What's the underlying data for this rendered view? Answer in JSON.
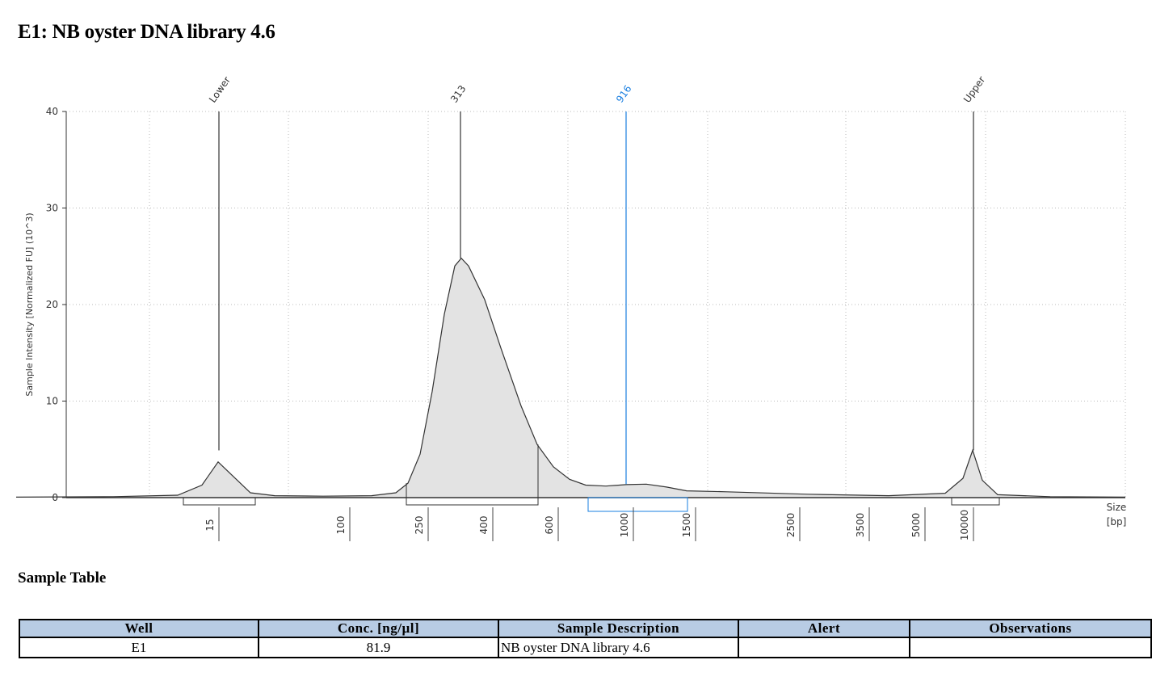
{
  "page": {
    "title": "E1: NB oyster DNA library 4.6"
  },
  "chart_data": {
    "type": "line",
    "ylabel": "Sample Intensity [Normalized FU] (10^3)",
    "xlabel_line1": "Size",
    "xlabel_line2": "[bp]",
    "ylim": [
      0,
      40
    ],
    "yticks": [
      0,
      10,
      20,
      30,
      40
    ],
    "xticks": [
      "15",
      "100",
      "250",
      "400",
      "600",
      "1000",
      "1500",
      "2500",
      "3500",
      "5000",
      "10000"
    ],
    "grid": true,
    "trace": [
      [
        20,
        0.05
      ],
      [
        140,
        0.1
      ],
      [
        220,
        0.25
      ],
      [
        250,
        1.3
      ],
      [
        270,
        3.7
      ],
      [
        290,
        2.1
      ],
      [
        310,
        0.5
      ],
      [
        340,
        0.2
      ],
      [
        400,
        0.15
      ],
      [
        460,
        0.2
      ],
      [
        490,
        0.5
      ],
      [
        505,
        1.5
      ],
      [
        520,
        4.5
      ],
      [
        535,
        11.0
      ],
      [
        550,
        19.0
      ],
      [
        563,
        24.0
      ],
      [
        571,
        24.8
      ],
      [
        580,
        24.0
      ],
      [
        600,
        20.5
      ],
      [
        620,
        15.5
      ],
      [
        645,
        9.5
      ],
      [
        665,
        5.5
      ],
      [
        685,
        3.2
      ],
      [
        705,
        1.9
      ],
      [
        725,
        1.3
      ],
      [
        750,
        1.2
      ],
      [
        775,
        1.35
      ],
      [
        800,
        1.4
      ],
      [
        825,
        1.1
      ],
      [
        850,
        0.7
      ],
      [
        900,
        0.6
      ],
      [
        1000,
        0.35
      ],
      [
        1100,
        0.2
      ],
      [
        1170,
        0.45
      ],
      [
        1192,
        2.0
      ],
      [
        1204,
        4.9
      ],
      [
        1216,
        1.8
      ],
      [
        1235,
        0.3
      ],
      [
        1300,
        0.1
      ],
      [
        1393,
        0.05
      ]
    ],
    "peaks": [
      {
        "label": "Lower",
        "x": 271,
        "y": 4.9,
        "color": "#333333"
      },
      {
        "label": "313",
        "x": 570,
        "y": 24.8,
        "color": "#333333"
      },
      {
        "label": "916",
        "x": 775,
        "y": 1.4,
        "color": "#1a7fe0"
      },
      {
        "label": "Upper",
        "x": 1205,
        "y": 4.9,
        "color": "#333333"
      }
    ],
    "regions": [
      {
        "from": 227,
        "to": 316,
        "color": "#333333"
      },
      {
        "from": 503,
        "to": 666,
        "color": "#333333"
      },
      {
        "from": 728,
        "to": 851,
        "color": "#1a7fe0"
      },
      {
        "from": 1178,
        "to": 1237,
        "color": "#333333"
      }
    ]
  },
  "table": {
    "title": "Sample Table",
    "headers": [
      "Well",
      "Conc. [ng/µl]",
      "Sample Description",
      "Alert",
      "Observations"
    ],
    "rows": [
      [
        "E1",
        "81.9",
        "NB oyster DNA library 4.6",
        "",
        ""
      ]
    ],
    "header_color": "#b8cce4"
  }
}
